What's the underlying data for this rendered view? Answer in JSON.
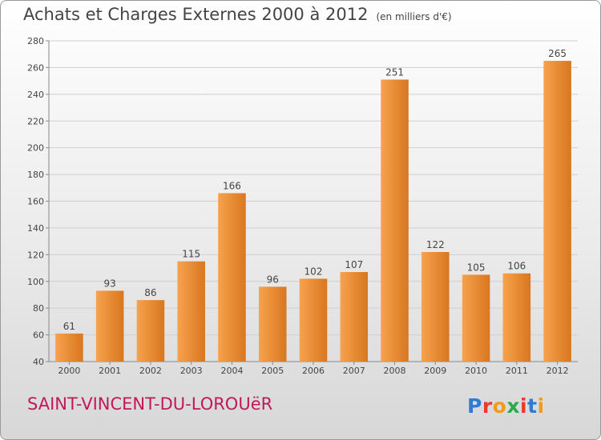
{
  "header": {
    "title": "Achats et Charges Externes 2000 à 2012",
    "unit": "(en milliers d'€)"
  },
  "footer": {
    "commune": "SAINT-VINCENT-DU-LOROUëR",
    "logo": "Proxiti"
  },
  "colors": {
    "bar_light": "#f7a24e",
    "bar_dark": "#d8771f",
    "commune_text": "#c2185b",
    "logo_letters": [
      "#2e7bd6",
      "#e63b2e",
      "#f29a1a",
      "#2ea84a",
      "#e63b2e",
      "#2e7bd6",
      "#f29a1a"
    ]
  },
  "chart_data": {
    "type": "bar",
    "title": "Achats et Charges Externes 2000 à 2012",
    "ylabel": "",
    "xlabel": "",
    "ylim": [
      40,
      280
    ],
    "yticks": [
      40,
      60,
      80,
      100,
      120,
      140,
      160,
      180,
      200,
      220,
      240,
      260,
      280
    ],
    "grid": true,
    "categories": [
      "2000",
      "2001",
      "2002",
      "2003",
      "2004",
      "2005",
      "2006",
      "2007",
      "2008",
      "2009",
      "2010",
      "2011",
      "2012"
    ],
    "values": [
      61,
      93,
      86,
      115,
      166,
      96,
      102,
      107,
      251,
      122,
      105,
      106,
      265
    ]
  }
}
